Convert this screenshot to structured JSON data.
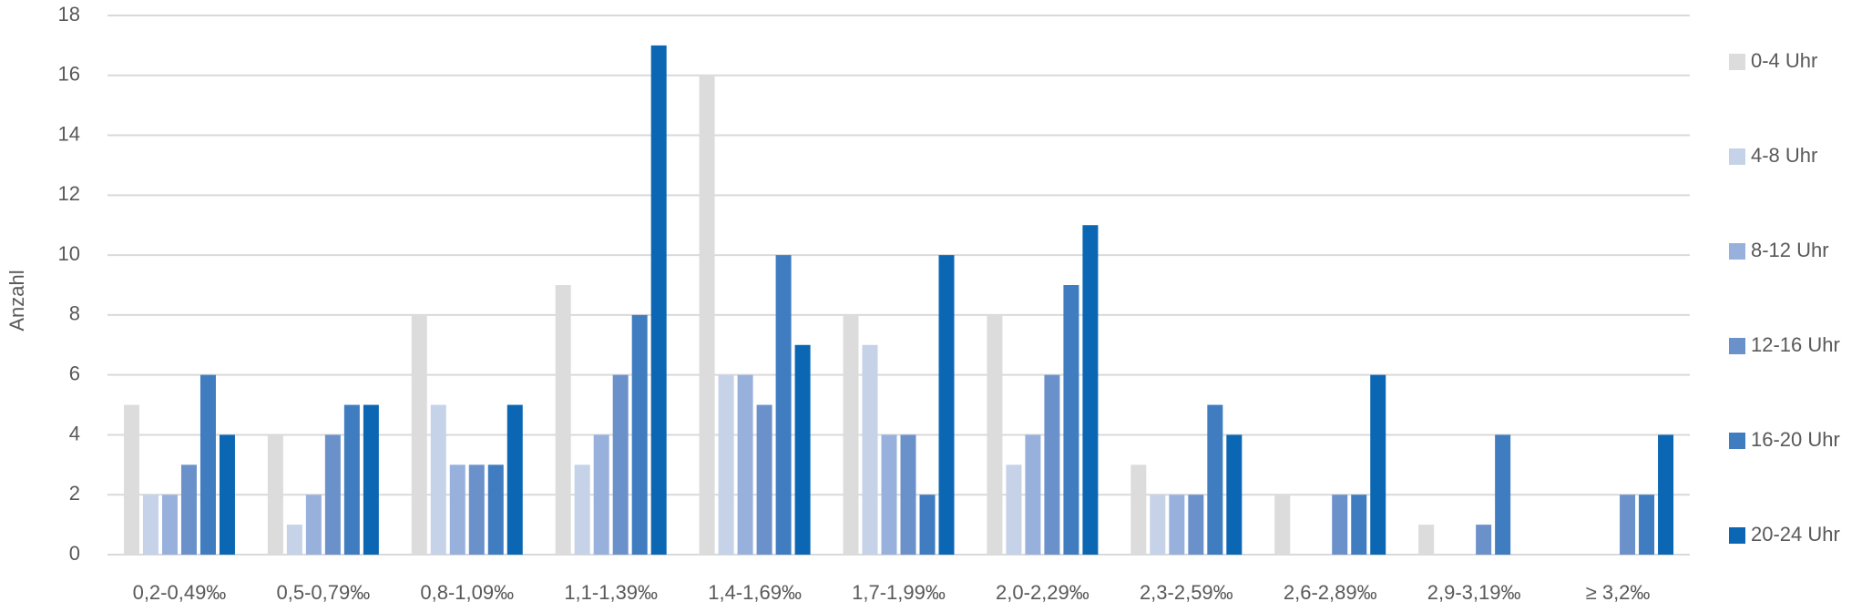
{
  "chart_data": {
    "type": "bar",
    "y_label": "Anzahl",
    "categories": [
      "0,2-0,49‰",
      "0,5-0,79‰",
      "0,8-1,09‰",
      "1,1-1,39‰",
      "1,4-1,69‰",
      "1,7-1,99‰",
      "2,0-2,29‰",
      "2,3-2,59‰",
      "2,6-2,89‰",
      "2,9-3,19‰",
      "≥ 3,2‰"
    ],
    "series": [
      {
        "name": "0-4 Uhr",
        "color": "#dcdcdc",
        "values": [
          5,
          4,
          8,
          9,
          16,
          8,
          8,
          3,
          2,
          1,
          0
        ]
      },
      {
        "name": "4-8 Uhr",
        "color": "#c6d2e8",
        "values": [
          2,
          1,
          5,
          3,
          6,
          7,
          3,
          2,
          0,
          0,
          0
        ]
      },
      {
        "name": "8-12 Uhr",
        "color": "#98b1dc",
        "values": [
          2,
          2,
          3,
          4,
          6,
          4,
          4,
          2,
          0,
          0,
          0
        ]
      },
      {
        "name": "12-16 Uhr",
        "color": "#6b91cb",
        "values": [
          3,
          4,
          3,
          6,
          5,
          4,
          6,
          2,
          2,
          1,
          2
        ]
      },
      {
        "name": "16-20 Uhr",
        "color": "#3f7cc0",
        "values": [
          6,
          5,
          3,
          8,
          10,
          2,
          9,
          5,
          2,
          4,
          2
        ]
      },
      {
        "name": "20-24 Uhr",
        "color": "#0b67b3",
        "values": [
          4,
          5,
          5,
          17,
          7,
          10,
          11,
          4,
          6,
          0,
          4
        ]
      }
    ],
    "ylim": [
      0,
      18
    ],
    "yticks": [
      0,
      2,
      4,
      6,
      8,
      10,
      12,
      14,
      16,
      18
    ],
    "grid": true,
    "legend": "right"
  }
}
